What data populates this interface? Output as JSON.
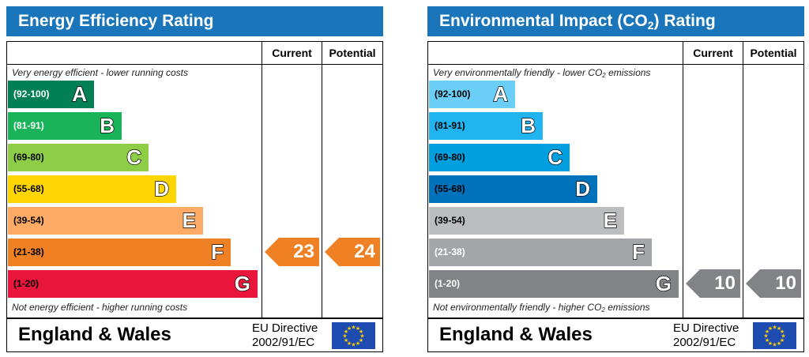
{
  "chart_data": [
    {
      "type": "bar",
      "title": "Energy Efficiency Rating",
      "columns": [
        "Current",
        "Potential"
      ],
      "note_top": "Very energy efficient - lower running costs",
      "note_bottom": "Not energy efficient - higher running costs",
      "bands": [
        {
          "range": "(92-100)",
          "letter": "A",
          "color": "#008054",
          "range_color": "#ffffff"
        },
        {
          "range": "(81-91)",
          "letter": "B",
          "color": "#19b459",
          "range_color": "#ffffff"
        },
        {
          "range": "(69-80)",
          "letter": "C",
          "color": "#8dce46",
          "range_color": "#000000"
        },
        {
          "range": "(55-68)",
          "letter": "D",
          "color": "#ffd500",
          "range_color": "#000000"
        },
        {
          "range": "(39-54)",
          "letter": "E",
          "color": "#fcaa65",
          "range_color": "#000000"
        },
        {
          "range": "(21-38)",
          "letter": "F",
          "color": "#ef8023",
          "range_color": "#000000"
        },
        {
          "range": "(1-20)",
          "letter": "G",
          "color": "#e9153b",
          "range_color": "#000000"
        }
      ],
      "current": {
        "value": 23,
        "band": "F",
        "color": "#ef8023"
      },
      "potential": {
        "value": 24,
        "band": "F",
        "color": "#ef8023"
      },
      "footer": {
        "country": "England & Wales",
        "directive_line1": "EU Directive",
        "directive_line2": "2002/91/EC"
      }
    },
    {
      "type": "bar",
      "title_pre": "Environmental Impact (CO",
      "title_sub": "2",
      "title_post": ") Rating",
      "columns": [
        "Current",
        "Potential"
      ],
      "note_top_pre": "Very environmentally friendly - lower CO",
      "note_top_sub": "2",
      "note_top_post": " emissions",
      "note_bottom_pre": "Not environmentally friendly - higher CO",
      "note_bottom_sub": "2",
      "note_bottom_post": " emissions",
      "bands": [
        {
          "range": "(92-100)",
          "letter": "A",
          "color": "#6acef6",
          "range_color": "#000000"
        },
        {
          "range": "(81-91)",
          "letter": "B",
          "color": "#21b4f1",
          "range_color": "#000000"
        },
        {
          "range": "(69-80)",
          "letter": "C",
          "color": "#00a0e0",
          "range_color": "#000000"
        },
        {
          "range": "(55-68)",
          "letter": "D",
          "color": "#0071bb",
          "range_color": "#000000"
        },
        {
          "range": "(39-54)",
          "letter": "E",
          "color": "#bbbdbf",
          "range_color": "#000000"
        },
        {
          "range": "(21-38)",
          "letter": "F",
          "color": "#a3a5a8",
          "range_color": "#ffffff"
        },
        {
          "range": "(1-20)",
          "letter": "G",
          "color": "#818386",
          "range_color": "#ffffff"
        }
      ],
      "current": {
        "value": 10,
        "band": "G",
        "color": "#818386"
      },
      "potential": {
        "value": 10,
        "band": "G",
        "color": "#818386"
      },
      "footer": {
        "country": "England & Wales",
        "directive_line1": "EU Directive",
        "directive_line2": "2002/91/EC"
      }
    }
  ]
}
